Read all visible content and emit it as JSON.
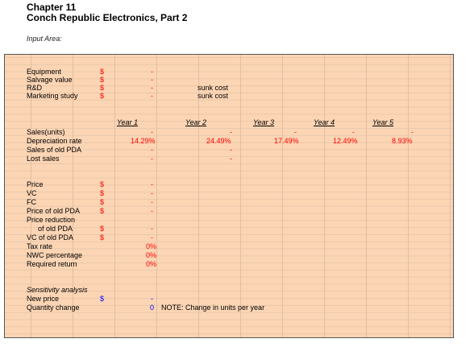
{
  "header": {
    "chapter": "Chapter 11",
    "title": "Conch Republic Electronics, Part 2",
    "input_area": "Input Area:"
  },
  "currency_symbol": "$",
  "dash": "-",
  "rows": {
    "equipment": "Equipment",
    "salvage_value": "Salvage value",
    "rd": "R&D",
    "marketing_study": "Marketing study",
    "sales_units": "Sales(units)",
    "depreciation_rate": "Depreciation rate",
    "sales_old_pda": "Sales of old PDA",
    "lost_sales": "Lost sales",
    "price": "Price",
    "vc": "VC",
    "fc": "FC",
    "price_old_pda": "Price of old PDA",
    "price_reduction_1": "Price reduction",
    "price_reduction_2": "of old PDA",
    "vc_old_pda": "VC of old PDA",
    "tax_rate": "Tax rate",
    "nwc_percentage": "NWC percentage",
    "required_return": "Required return",
    "sensitivity": "Sensitivity analysis",
    "new_price": "New price",
    "quantity_change": "Quantity change"
  },
  "notes": {
    "sunk_cost": "sunk cost",
    "units_note": "NOTE: Change in units per year"
  },
  "years": [
    "Year 1",
    "Year 2",
    "Year 3",
    "Year 4",
    "Year 5"
  ],
  "depreciation": [
    "14.29%",
    "24.49%",
    "17.49%",
    "12.49%",
    "8.93%"
  ],
  "pct": {
    "tax_rate": "0%",
    "nwc_percentage": "0%",
    "required_return": "0%"
  },
  "quantity_change_value": "0",
  "colors": {
    "input_fill": "#fcd5b4",
    "value_red": "#ff0000",
    "value_blue": "#0000ff"
  }
}
